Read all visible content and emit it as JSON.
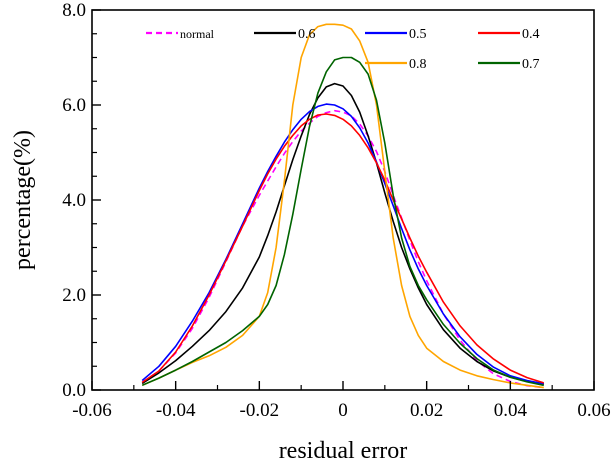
{
  "chart_data": {
    "type": "line",
    "title": "",
    "xlabel": "residual error",
    "ylabel": "percentage(%)",
    "xlim": [
      -0.06,
      0.06
    ],
    "ylim": [
      0.0,
      8.0
    ],
    "x_ticks": [
      "-0.06",
      "-0.04",
      "-0.02",
      "0",
      "0.02",
      "0.04",
      "0.06"
    ],
    "y_ticks": [
      "0.0",
      "2.0",
      "4.0",
      "6.0",
      "8.0"
    ],
    "x_tick_values": [
      -0.06,
      -0.04,
      -0.02,
      0,
      0.02,
      0.04,
      0.06
    ],
    "y_tick_values": [
      0,
      2,
      4,
      6,
      8
    ],
    "grid": false,
    "legend_position": "top",
    "x": [
      -0.048,
      -0.044,
      -0.04,
      -0.036,
      -0.032,
      -0.028,
      -0.024,
      -0.02,
      -0.018,
      -0.016,
      -0.014,
      -0.012,
      -0.01,
      -0.008,
      -0.006,
      -0.004,
      -0.002,
      0,
      0.002,
      0.004,
      0.006,
      0.008,
      0.01,
      0.012,
      0.014,
      0.016,
      0.018,
      0.02,
      0.024,
      0.028,
      0.032,
      0.036,
      0.04,
      0.044,
      0.048
    ],
    "series": [
      {
        "name": "normal",
        "color": "#ff00ff",
        "dash": true,
        "values": [
          0.16,
          0.4,
          0.78,
          1.3,
          1.95,
          2.7,
          3.45,
          4.1,
          4.4,
          4.7,
          4.98,
          5.23,
          5.45,
          5.62,
          5.76,
          5.84,
          5.88,
          5.85,
          5.77,
          5.6,
          5.35,
          5.02,
          4.6,
          4.1,
          3.62,
          3.15,
          2.7,
          2.3,
          1.6,
          1.05,
          0.62,
          0.34,
          0.18,
          0.09,
          0.05
        ]
      },
      {
        "name": "0.6",
        "color": "#000000",
        "dash": false,
        "values": [
          0.14,
          0.36,
          0.62,
          0.92,
          1.25,
          1.65,
          2.15,
          2.8,
          3.25,
          3.75,
          4.3,
          4.85,
          5.35,
          5.8,
          6.15,
          6.38,
          6.45,
          6.4,
          6.2,
          5.85,
          5.35,
          4.78,
          4.15,
          3.55,
          3.0,
          2.55,
          2.15,
          1.8,
          1.27,
          0.88,
          0.6,
          0.4,
          0.27,
          0.18,
          0.12
        ]
      },
      {
        "name": "0.5",
        "color": "#0000ff",
        "dash": false,
        "values": [
          0.2,
          0.5,
          0.92,
          1.45,
          2.05,
          2.75,
          3.5,
          4.25,
          4.6,
          4.92,
          5.22,
          5.48,
          5.7,
          5.86,
          5.97,
          6.02,
          6.0,
          5.92,
          5.76,
          5.52,
          5.2,
          4.8,
          4.35,
          3.88,
          3.4,
          2.95,
          2.55,
          2.2,
          1.6,
          1.12,
          0.75,
          0.48,
          0.3,
          0.2,
          0.13
        ]
      },
      {
        "name": "0.4",
        "color": "#ff0000",
        "dash": false,
        "values": [
          0.16,
          0.4,
          0.8,
          1.35,
          2.0,
          2.72,
          3.45,
          4.2,
          4.55,
          4.86,
          5.13,
          5.36,
          5.56,
          5.7,
          5.79,
          5.81,
          5.78,
          5.7,
          5.56,
          5.36,
          5.1,
          4.78,
          4.42,
          4.0,
          3.6,
          3.2,
          2.82,
          2.48,
          1.85,
          1.35,
          0.95,
          0.65,
          0.42,
          0.26,
          0.15
        ]
      },
      {
        "name": "0.8",
        "color": "#ffa500",
        "dash": false,
        "values": [
          0.1,
          0.25,
          0.42,
          0.58,
          0.72,
          0.9,
          1.15,
          1.55,
          2.05,
          3.0,
          4.4,
          6.0,
          7.0,
          7.48,
          7.65,
          7.7,
          7.7,
          7.68,
          7.6,
          7.35,
          6.9,
          6.0,
          4.6,
          3.2,
          2.2,
          1.55,
          1.15,
          0.88,
          0.6,
          0.42,
          0.3,
          0.22,
          0.15,
          0.1,
          0.05
        ]
      },
      {
        "name": "0.7",
        "color": "#006400",
        "dash": false,
        "values": [
          0.1,
          0.25,
          0.42,
          0.6,
          0.8,
          1.0,
          1.25,
          1.55,
          1.8,
          2.2,
          2.85,
          3.7,
          4.65,
          5.55,
          6.25,
          6.7,
          6.95,
          7.0,
          7.0,
          6.9,
          6.65,
          6.1,
          5.2,
          4.1,
          3.2,
          2.6,
          2.2,
          1.9,
          1.38,
          0.98,
          0.66,
          0.42,
          0.27,
          0.17,
          0.1
        ]
      }
    ]
  }
}
